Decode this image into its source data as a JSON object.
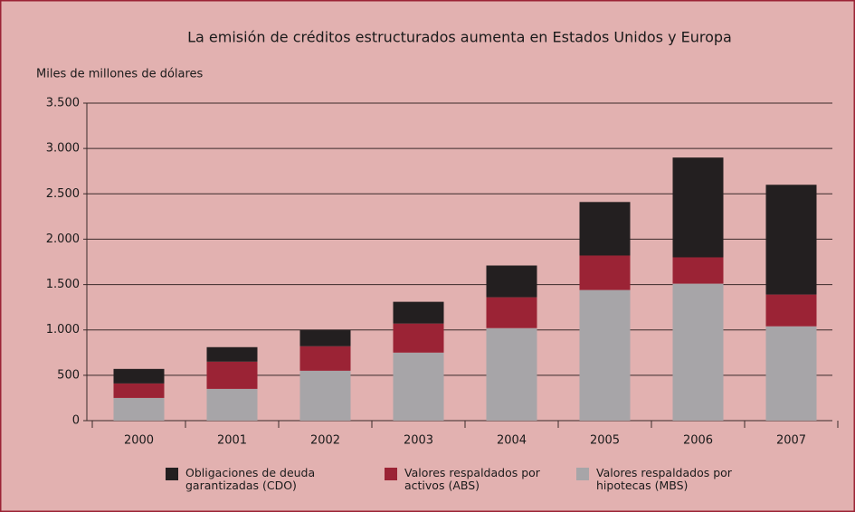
{
  "chart_data": {
    "type": "bar",
    "stacked": true,
    "title": "La emisión de créditos estructurados aumenta en Estados Unidos y Europa",
    "y_label": "Miles de millones de dólares",
    "categories": [
      "2000",
      "2001",
      "2002",
      "2003",
      "2004",
      "2005",
      "2006",
      "2007"
    ],
    "series": [
      {
        "name": "Obligaciones de deuda garantizadas (CDO)",
        "color": "#231f20",
        "values": [
          160,
          160,
          180,
          240,
          350,
          590,
          1100,
          1210
        ]
      },
      {
        "name": "Valores respaldados por activos (ABS)",
        "color": "#9b2335",
        "values": [
          160,
          300,
          270,
          320,
          340,
          380,
          290,
          350
        ]
      },
      {
        "name": "Valores respaldados por hipotecas (MBS)",
        "color": "#a7a5a8",
        "values": [
          250,
          350,
          550,
          750,
          1020,
          1440,
          1510,
          1040
        ]
      }
    ],
    "ylim": [
      0,
      3500
    ],
    "yticks": [
      0,
      500,
      {
        "value": 1000,
        "label": "1.000"
      },
      {
        "value": 1500,
        "label": "1.500"
      },
      {
        "value": 2000,
        "label": "2.000"
      },
      {
        "value": 2500,
        "label": "2.500"
      },
      {
        "value": 3000,
        "label": "3.000"
      },
      {
        "value": 3500,
        "label": "3.500"
      }
    ],
    "grid": true
  }
}
